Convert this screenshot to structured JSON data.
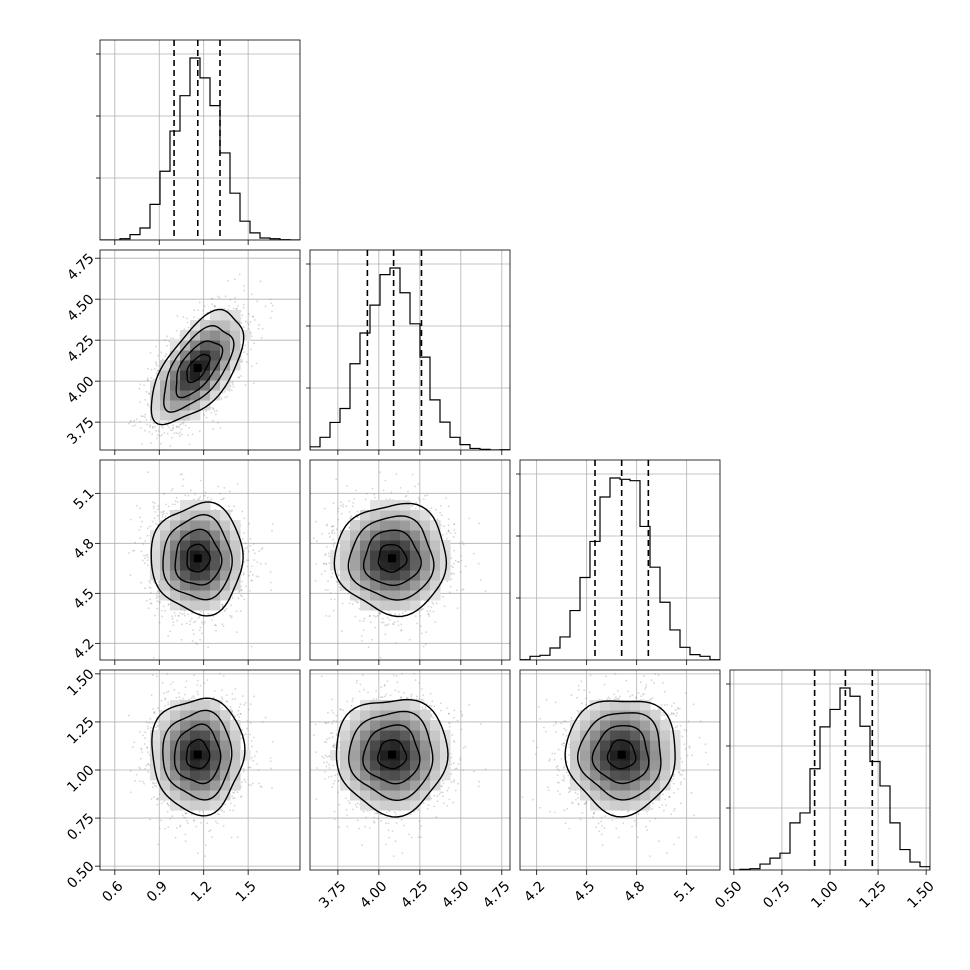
{
  "chart_data": {
    "type": "corner",
    "title": "",
    "parameters": [
      {
        "name": "",
        "mean": 1.16,
        "sd": 0.155,
        "range": [
          0.5,
          1.85
        ],
        "ticks": [
          0.6,
          0.9,
          1.2,
          1.5
        ],
        "tick_labels": [
          "0.6",
          "0.9",
          "1.2",
          "1.5"
        ],
        "quantiles": [
          1.0,
          1.16,
          1.31
        ]
      },
      {
        "name": "",
        "mean": 4.08,
        "sd": 0.17,
        "range": [
          3.58,
          4.8
        ],
        "ticks": [
          3.75,
          4.0,
          4.25,
          4.5,
          4.75
        ],
        "tick_labels": [
          "3.75",
          "4.00",
          "4.25",
          "4.50",
          "4.75"
        ],
        "quantiles": [
          3.93,
          4.09,
          4.26
        ]
      },
      {
        "name": "",
        "mean": 4.71,
        "sd": 0.165,
        "range": [
          4.1,
          5.3
        ],
        "ticks": [
          4.2,
          4.5,
          4.8,
          5.1
        ],
        "tick_labels": [
          "4.2",
          "4.5",
          "4.8",
          "5.1"
        ],
        "quantiles": [
          4.55,
          4.71,
          4.87
        ]
      },
      {
        "name": "",
        "mean": 1.08,
        "sd": 0.15,
        "range": [
          0.48,
          1.52
        ],
        "ticks": [
          0.5,
          0.75,
          1.0,
          1.25,
          1.5
        ],
        "tick_labels": [
          "0.50",
          "0.75",
          "1.00",
          "1.25",
          "1.50"
        ],
        "quantiles": [
          0.92,
          1.08,
          1.22
        ]
      }
    ],
    "correlations": [
      [
        1,
        0.6,
        0,
        0
      ],
      [
        0.6,
        1,
        0,
        0
      ],
      [
        0,
        0,
        1,
        0
      ],
      [
        0,
        0,
        0,
        1
      ]
    ],
    "histogram_bins": 20,
    "contour_levels": [
      0.5,
      1.0,
      1.5,
      2.0
    ],
    "grid": true,
    "colors": {
      "ink": "#000000",
      "grid": "#b0b0b0",
      "scatter": "#8a8a8a"
    }
  }
}
